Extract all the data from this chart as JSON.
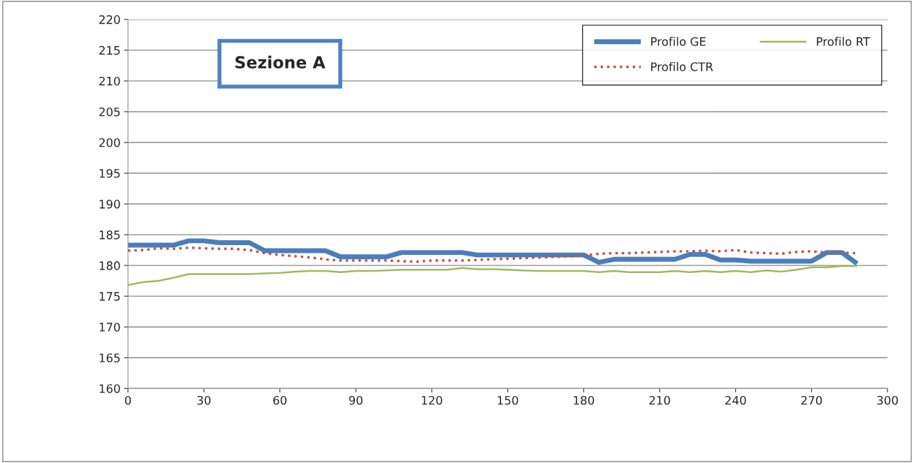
{
  "chart_data": {
    "type": "line",
    "x": [
      0,
      6,
      12,
      18,
      24,
      30,
      36,
      42,
      48,
      54,
      60,
      66,
      72,
      78,
      84,
      90,
      96,
      102,
      108,
      114,
      120,
      126,
      132,
      138,
      144,
      150,
      156,
      162,
      168,
      174,
      180,
      186,
      192,
      198,
      204,
      210,
      216,
      222,
      228,
      234,
      240,
      246,
      252,
      258,
      264,
      270,
      276,
      282,
      288
    ],
    "series": [
      {
        "name": "Profilo GE",
        "color": "#4a7ebb",
        "line_style": "solid",
        "values": [
          183.3,
          183.3,
          183.3,
          183.3,
          184.0,
          184.0,
          183.7,
          183.7,
          183.7,
          182.4,
          182.4,
          182.4,
          182.4,
          182.4,
          181.4,
          181.4,
          181.4,
          181.4,
          182.1,
          182.1,
          182.1,
          182.1,
          182.1,
          181.7,
          181.7,
          181.7,
          181.7,
          181.7,
          181.7,
          181.7,
          181.7,
          180.5,
          181.0,
          181.0,
          181.0,
          181.0,
          181.0,
          181.8,
          181.8,
          180.9,
          180.9,
          180.7,
          180.7,
          180.7,
          180.7,
          180.7,
          182.1,
          182.1,
          180.3
        ]
      },
      {
        "name": "Profilo CTR",
        "color": "#c0504d",
        "line_style": "dotted",
        "values": [
          182.4,
          182.5,
          182.8,
          182.7,
          182.9,
          182.8,
          182.7,
          182.7,
          182.5,
          182.0,
          181.7,
          181.5,
          181.3,
          181.0,
          180.8,
          180.8,
          180.8,
          180.8,
          180.7,
          180.6,
          180.8,
          180.8,
          180.8,
          180.9,
          181.0,
          181.1,
          181.2,
          181.3,
          181.4,
          181.5,
          181.6,
          181.9,
          182.0,
          182.0,
          182.1,
          182.2,
          182.3,
          182.3,
          182.4,
          182.3,
          182.5,
          182.1,
          182.0,
          181.9,
          182.2,
          182.3,
          182.1,
          182.1,
          182.0
        ]
      },
      {
        "name": "Profilo RT",
        "color": "#9bbb59",
        "line_style": "solid",
        "values": [
          176.8,
          177.3,
          177.5,
          178.0,
          178.6,
          178.6,
          178.6,
          178.6,
          178.6,
          178.7,
          178.8,
          179.0,
          179.1,
          179.1,
          178.9,
          179.1,
          179.1,
          179.2,
          179.3,
          179.3,
          179.3,
          179.3,
          179.6,
          179.4,
          179.4,
          179.3,
          179.2,
          179.1,
          179.1,
          179.1,
          179.1,
          178.9,
          179.1,
          178.9,
          178.9,
          178.9,
          179.1,
          178.9,
          179.1,
          178.9,
          179.1,
          178.9,
          179.2,
          179.0,
          179.3,
          179.7,
          179.7,
          179.9,
          179.9
        ]
      }
    ],
    "xlim": [
      0,
      300
    ],
    "xticks": [
      0,
      30,
      60,
      90,
      120,
      150,
      180,
      210,
      240,
      270,
      300
    ],
    "ylim": [
      160,
      220
    ],
    "yticks": [
      160,
      165,
      170,
      175,
      180,
      185,
      190,
      195,
      200,
      205,
      210,
      215,
      220
    ],
    "grid": "y",
    "legend": "top right",
    "marker": "none",
    "annotations": [
      "Sezione A"
    ]
  }
}
